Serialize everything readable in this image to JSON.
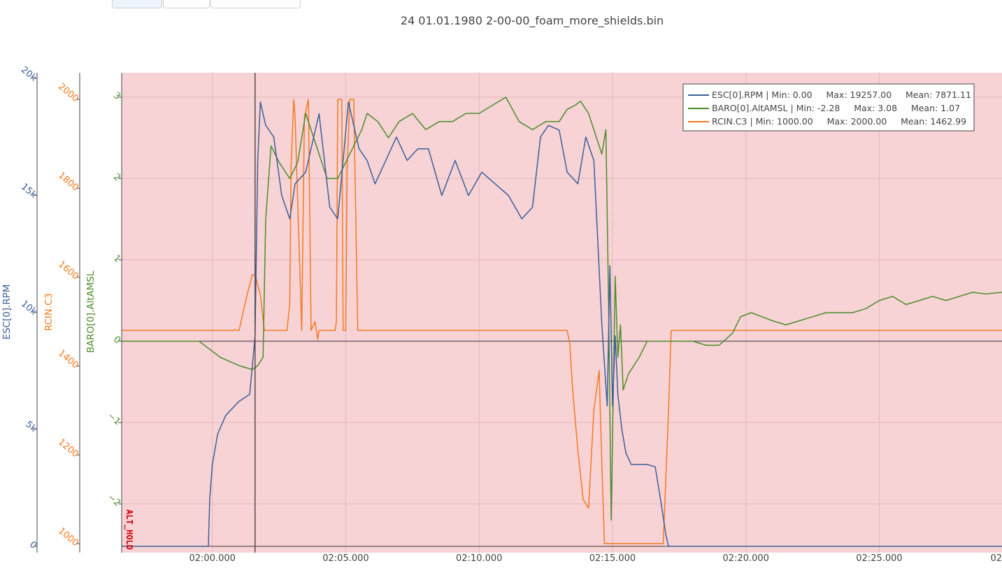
{
  "title": "24 01.01.1980 2-00-00_foam_more_shields.bin",
  "tabs": [
    "",
    "",
    ""
  ],
  "colors": {
    "esc": "#3b5f99",
    "baro": "#4a8c2a",
    "rcin": "#f47a1f",
    "mode_band": "#f8d3d6",
    "mode_text": "#cc0000"
  },
  "chart_data": {
    "type": "line",
    "title": "24 01.01.1980 2-00-00_foam_more_shields.bin",
    "x_tick_labels": [
      "02:00.000",
      "02:05.000",
      "02:10.000",
      "02:15.000",
      "02:20.000",
      "02:25.000",
      "02"
    ],
    "x_ticks_s": [
      120,
      125,
      130,
      135,
      140,
      145,
      150
    ],
    "xlim_s": [
      116.6,
      149.6
    ],
    "cursor_s": 121.6,
    "flight_mode": {
      "label": "ALT_HOLD",
      "start_s": 116.6
    },
    "axes": [
      {
        "id": "esc",
        "label": "ESC[0].RPM",
        "ticks": [
          0,
          5000,
          10000,
          15000,
          20000
        ],
        "tick_labels": [
          "0",
          "5k",
          "10k",
          "15k",
          "20k"
        ],
        "range": [
          -270,
          20250
        ]
      },
      {
        "id": "rcin",
        "label": "RCIN.C3",
        "ticks": [
          1000,
          1200,
          1400,
          1600,
          1800,
          2000
        ],
        "tick_labels": [
          "1000",
          "1200",
          "1400",
          "1600",
          "1800",
          "2000"
        ],
        "range": [
          980,
          2060
        ]
      },
      {
        "id": "baro",
        "label": "BARO[0].AltAMSL",
        "ticks": [
          -2,
          -1,
          0,
          1,
          2,
          3
        ],
        "tick_labels": [
          "−2",
          "−1",
          "0",
          "1",
          "2",
          "3"
        ],
        "range": [
          -2.6,
          3.3
        ]
      }
    ],
    "series": [
      {
        "name": "ESC[0].RPM",
        "axis": "esc",
        "legend": "ESC[0].RPM | Min: 0.00     Max: 19257.00     Mean: 7871.11",
        "x": [
          116.6,
          119.85,
          119.9,
          120.0,
          120.2,
          120.5,
          121.0,
          121.4,
          121.6,
          121.7,
          121.8,
          122.0,
          122.3,
          122.6,
          122.9,
          123.1,
          123.5,
          124.0,
          124.4,
          124.7,
          124.9,
          125.1,
          125.5,
          125.8,
          126.1,
          126.5,
          126.9,
          127.3,
          127.7,
          128.1,
          128.6,
          129.1,
          129.6,
          130.1,
          130.6,
          131.1,
          131.6,
          132.0,
          132.3,
          132.6,
          133.0,
          133.3,
          133.7,
          134.0,
          134.3,
          134.6,
          134.8,
          134.9,
          135.0,
          135.1,
          135.2,
          135.35,
          135.5,
          135.7,
          136.0,
          136.3,
          136.6,
          136.8,
          137.0,
          137.1,
          137.2,
          149.6
        ],
        "y": [
          0,
          0,
          2000,
          3500,
          4800,
          5600,
          6200,
          6500,
          9000,
          16500,
          19000,
          18000,
          17500,
          15000,
          14000,
          15500,
          16000,
          18500,
          14500,
          14000,
          16500,
          19000,
          17000,
          16500,
          15500,
          16500,
          17500,
          16500,
          17000,
          17000,
          15000,
          16500,
          15000,
          16000,
          15500,
          15000,
          14000,
          14500,
          17500,
          18000,
          17800,
          16000,
          15500,
          17500,
          16500,
          9500,
          6000,
          12000,
          6000,
          9000,
          6500,
          5000,
          4000,
          3500,
          3500,
          3500,
          3400,
          2000,
          500,
          0,
          0,
          0
        ]
      },
      {
        "name": "BARO[0].AltAMSL",
        "axis": "baro",
        "legend": "BARO[0].AltAMSL | Min: -2.28     Max: 3.08     Mean: 1.07",
        "x": [
          116.6,
          117.5,
          118.5,
          119.5,
          120.3,
          121.0,
          121.5,
          121.7,
          121.9,
          122.0,
          122.2,
          122.5,
          122.9,
          123.2,
          123.5,
          123.9,
          124.3,
          124.7,
          125.0,
          125.3,
          125.6,
          125.8,
          126.2,
          126.6,
          127.0,
          127.5,
          128.0,
          128.5,
          129.0,
          129.5,
          130.0,
          130.5,
          131.0,
          131.5,
          132.0,
          132.5,
          133.0,
          133.3,
          133.6,
          133.8,
          134.1,
          134.4,
          134.6,
          134.75,
          134.85,
          134.95,
          135.1,
          135.2,
          135.3,
          135.4,
          135.6,
          135.8,
          136.0,
          136.3,
          136.7,
          137.0,
          137.5,
          138.0,
          138.5,
          139.0,
          139.5,
          139.8,
          140.2,
          140.6,
          141.0,
          141.5,
          142.0,
          142.5,
          143.0,
          143.5,
          144.0,
          144.5,
          145.0,
          145.5,
          146.0,
          146.5,
          147.0,
          147.5,
          148.0,
          148.5,
          149.0,
          149.6
        ],
        "y": [
          0.0,
          0.0,
          0.0,
          0.0,
          -0.2,
          -0.3,
          -0.35,
          -0.3,
          -0.2,
          1.5,
          2.4,
          2.2,
          2.0,
          2.2,
          2.8,
          2.4,
          2.0,
          2.0,
          2.2,
          2.4,
          2.6,
          2.8,
          2.7,
          2.5,
          2.7,
          2.8,
          2.6,
          2.7,
          2.7,
          2.8,
          2.8,
          2.9,
          3.0,
          2.7,
          2.6,
          2.7,
          2.7,
          2.85,
          2.9,
          2.95,
          2.8,
          2.5,
          2.3,
          2.6,
          0.5,
          -2.2,
          0.8,
          -0.2,
          0.2,
          -0.6,
          -0.4,
          -0.3,
          -0.2,
          0.0,
          0.0,
          0.0,
          0.0,
          0.0,
          -0.05,
          -0.05,
          0.1,
          0.3,
          0.35,
          0.3,
          0.25,
          0.2,
          0.25,
          0.3,
          0.35,
          0.35,
          0.35,
          0.4,
          0.5,
          0.55,
          0.45,
          0.5,
          0.55,
          0.5,
          0.55,
          0.6,
          0.58,
          0.6
        ]
      },
      {
        "name": "RCIN.C3",
        "axis": "rcin",
        "legend": "RCIN.C3 | Min: 1000.00     Max: 2000.00     Mean: 1462.99",
        "x": [
          116.6,
          120.8,
          120.85,
          120.95,
          121.0,
          121.3,
          121.5,
          121.6,
          121.8,
          121.95,
          122.1,
          122.8,
          122.9,
          122.95,
          123.05,
          123.1,
          123.35,
          123.45,
          123.6,
          123.7,
          123.85,
          123.95,
          124.0,
          124.25,
          124.3,
          124.35,
          124.6,
          124.65,
          124.7,
          124.85,
          124.9,
          125.0,
          125.05,
          125.15,
          125.3,
          125.45,
          125.5,
          125.8,
          130.0,
          133.3,
          133.4,
          133.5,
          133.7,
          133.9,
          134.1,
          134.3,
          134.5,
          134.6,
          134.7,
          134.8,
          134.85,
          136.9,
          137.1,
          137.2,
          137.3,
          137.4,
          149.6
        ],
        "y": [
          1480,
          1480,
          1482,
          1480,
          1480,
          1560,
          1605,
          1605,
          1560,
          1480,
          1480,
          1480,
          1540,
          1850,
          2000,
          1960,
          1480,
          1960,
          2000,
          1480,
          1500,
          1460,
          1480,
          1480,
          1480,
          1480,
          1480,
          1500,
          2000,
          2000,
          1480,
          1480,
          1840,
          2000,
          2000,
          1480,
          1480,
          1480,
          1480,
          1480,
          1450,
          1350,
          1210,
          1100,
          1080,
          1300,
          1390,
          1180,
          1000,
          1000,
          1000,
          1000,
          1300,
          1480,
          1480,
          1480,
          1480
        ]
      }
    ]
  }
}
